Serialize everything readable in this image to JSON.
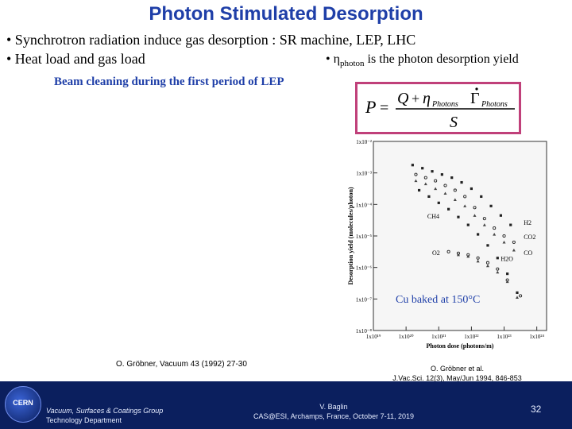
{
  "slide": {
    "title": "Photon Stimulated Desorption",
    "bullets": [
      "• Synchrotron radiation induce gas desorption : SR machine, LEP, LHC",
      "• Heat load and gas load"
    ],
    "eta_bullet": {
      "prefix": "• η",
      "sub": "photon",
      "suffix": " is the photon desorption yield"
    },
    "beam_cleaning": "Beam cleaning during the first period of LEP",
    "formula": {
      "P": "P",
      "eq": "=",
      "Q": "Q",
      "plus": "+",
      "eta": "η",
      "eta_sub": "Photons",
      "gamma": "Γ",
      "gamma_sub": "Photons",
      "S": "S"
    },
    "ref_left": "O. Gröbner, Vacuum 43 (1992) 27-30",
    "ref_right_1": "O. Gröbner et al.",
    "ref_right_2": "J.Vac.Sci. 12(3), May/Jun 1994, 846-853",
    "cu_label": "Cu baked at 150°C"
  },
  "chart_data": {
    "type": "scatter",
    "xlabel": "Photon dose (photons/m)",
    "ylabel": "Desorption yield (molecules/photon)",
    "x_ticks": [
      "1x10¹⁹",
      "1x10²⁰",
      "1x10²¹",
      "1x10²²",
      "1x10²³",
      "1x10²⁴"
    ],
    "y_ticks": [
      "1x10⁻²",
      "1x10⁻³",
      "1x10⁻⁴",
      "1x10⁻⁵",
      "1x10⁻⁶",
      "1x10⁻⁷",
      "1x10⁻⁸"
    ],
    "xlim": [
      19,
      24.3
    ],
    "ylim": [
      -8,
      -2
    ],
    "series": [
      {
        "name": "H2",
        "x": [
          20.2,
          20.5,
          20.8,
          21.1,
          21.4,
          21.7,
          22.0,
          22.3,
          22.6,
          22.9,
          23.2
        ],
        "y": [
          -2.75,
          -2.85,
          -2.95,
          -3.05,
          -3.15,
          -3.3,
          -3.5,
          -3.75,
          -4.05,
          -4.35,
          -4.65
        ]
      },
      {
        "name": "CO2",
        "x": [
          20.3,
          20.6,
          20.9,
          21.2,
          21.5,
          21.8,
          22.1,
          22.4,
          22.7,
          23.0,
          23.3
        ],
        "y": [
          -3.05,
          -3.15,
          -3.25,
          -3.4,
          -3.55,
          -3.75,
          -4.1,
          -4.45,
          -4.75,
          -5.0,
          -5.2
        ]
      },
      {
        "name": "CO",
        "x": [
          20.3,
          20.6,
          20.9,
          21.2,
          21.5,
          21.8,
          22.1,
          22.4,
          22.7,
          23.0,
          23.3
        ],
        "y": [
          -3.25,
          -3.35,
          -3.5,
          -3.65,
          -3.85,
          -4.05,
          -4.35,
          -4.65,
          -4.95,
          -5.2,
          -5.45
        ]
      },
      {
        "name": "CH4",
        "x": [
          20.4,
          20.7,
          21.0,
          21.3,
          21.6,
          21.9,
          22.2,
          22.5,
          22.8,
          23.1,
          23.4
        ],
        "y": [
          -3.55,
          -3.75,
          -3.95,
          -4.15,
          -4.4,
          -4.65,
          -4.95,
          -5.3,
          -5.7,
          -6.2,
          -6.8
        ]
      },
      {
        "name": "O2",
        "x": [
          21.3,
          21.6,
          21.9,
          22.2,
          22.5,
          22.8,
          23.1,
          23.5
        ],
        "y": [
          -5.5,
          -5.55,
          -5.6,
          -5.7,
          -5.85,
          -6.05,
          -6.4,
          -6.9
        ]
      },
      {
        "name": "H2O",
        "x": [
          21.6,
          21.9,
          22.2,
          22.5,
          22.8,
          23.1,
          23.4
        ],
        "y": [
          -5.6,
          -5.65,
          -5.8,
          -5.95,
          -6.15,
          -6.45,
          -6.95
        ]
      }
    ],
    "series_labels": [
      {
        "name": "H2",
        "text": "H2",
        "x": 23.6,
        "y": -4.65
      },
      {
        "name": "CO2",
        "text": "CO2",
        "x": 23.6,
        "y": -5.1
      },
      {
        "name": "CO",
        "text": "CO",
        "x": 23.6,
        "y": -5.6
      },
      {
        "name": "CH4",
        "text": "CH4",
        "x": 20.65,
        "y": -4.45
      },
      {
        "name": "O2",
        "text": "O2",
        "x": 20.8,
        "y": -5.6
      },
      {
        "name": "H2O",
        "text": "H2O",
        "x": 22.9,
        "y": -5.8
      }
    ]
  },
  "footer": {
    "logo": "CERN",
    "group_line1": "Vacuum, Surfaces & Coatings Group",
    "group_line2": "Technology Department",
    "author_line1": "V. Baglin",
    "author_line2": "CAS@ESI, Archamps, France, October 7-11, 2019",
    "page": "32"
  }
}
